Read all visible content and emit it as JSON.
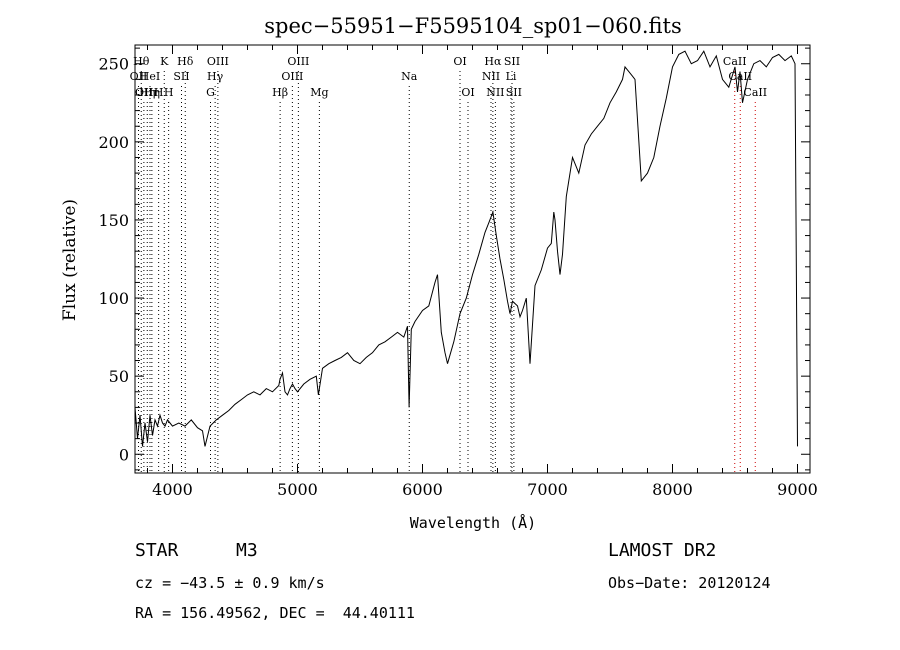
{
  "chart_data": {
    "type": "line",
    "title": "spec−55951−F5595104_sp01−060.fits",
    "xlabel": "Wavelength (Å)",
    "ylabel": "Flux (relative)",
    "xlim": [
      3700,
      9100
    ],
    "ylim": [
      -12,
      262
    ],
    "x_ticks": [
      4000,
      5000,
      6000,
      7000,
      8000,
      9000
    ],
    "x_tick_labels": [
      "4000",
      "5000",
      "6000",
      "7000",
      "8000",
      "9000"
    ],
    "y_ticks": [
      0,
      50,
      100,
      150,
      200,
      250
    ],
    "y_tick_labels": [
      "0",
      "50",
      "100",
      "150",
      "200",
      "250"
    ],
    "grid": false,
    "series": [
      {
        "x": [
          3700,
          3720,
          3740,
          3760,
          3780,
          3800,
          3820,
          3840,
          3860,
          3880,
          3900,
          3920,
          3940,
          3960,
          3980,
          4000,
          4050,
          4100,
          4150,
          4200,
          4240,
          4260,
          4300,
          4350,
          4400,
          4450,
          4500,
          4550,
          4600,
          4650,
          4700,
          4750,
          4800,
          4850,
          4860,
          4880,
          4900,
          4920,
          4940,
          4960,
          4980,
          5000,
          5050,
          5100,
          5150,
          5167,
          5200,
          5250,
          5300,
          5350,
          5400,
          5450,
          5500,
          5550,
          5600,
          5650,
          5700,
          5750,
          5800,
          5850,
          5880,
          5893,
          5910,
          5940,
          6000,
          6050,
          6100,
          6120,
          6150,
          6180,
          6200,
          6250,
          6300,
          6350,
          6400,
          6450,
          6500,
          6530,
          6563,
          6590,
          6620,
          6650,
          6680,
          6700,
          6720,
          6760,
          6780,
          6800,
          6830,
          6860,
          6900,
          6950,
          7000,
          7030,
          7050,
          7060,
          7080,
          7100,
          7120,
          7150,
          7200,
          7250,
          7300,
          7350,
          7400,
          7450,
          7500,
          7550,
          7600,
          7620,
          7650,
          7680,
          7700,
          7750,
          7800,
          7850,
          7900,
          7950,
          8000,
          8050,
          8100,
          8150,
          8200,
          8250,
          8300,
          8350,
          8400,
          8450,
          8500,
          8520,
          8540,
          8560,
          8600,
          8650,
          8700,
          8750,
          8800,
          8850,
          8900,
          8950,
          8980,
          9000
        ],
        "y": [
          30,
          10,
          25,
          5,
          20,
          8,
          25,
          12,
          22,
          18,
          25,
          20,
          18,
          22,
          20,
          18,
          20,
          18,
          22,
          17,
          15,
          5,
          18,
          22,
          25,
          28,
          32,
          35,
          38,
          40,
          38,
          42,
          40,
          44,
          48,
          52,
          40,
          38,
          42,
          45,
          42,
          40,
          45,
          48,
          50,
          38,
          55,
          58,
          60,
          62,
          65,
          60,
          58,
          62,
          65,
          70,
          72,
          75,
          78,
          75,
          82,
          30,
          80,
          85,
          92,
          95,
          110,
          115,
          78,
          65,
          58,
          72,
          90,
          100,
          115,
          128,
          142,
          148,
          155,
          140,
          125,
          112,
          98,
          90,
          98,
          95,
          88,
          92,
          100,
          58,
          108,
          118,
          132,
          135,
          155,
          150,
          130,
          115,
          128,
          165,
          190,
          180,
          198,
          205,
          210,
          215,
          225,
          232,
          240,
          248,
          245,
          242,
          240,
          175,
          180,
          190,
          210,
          228,
          248,
          256,
          258,
          250,
          252,
          258,
          248,
          255,
          240,
          235,
          248,
          232,
          245,
          225,
          240,
          250,
          252,
          248,
          254,
          256,
          252,
          255,
          250,
          5
        ],
        "line_color": "#000000"
      }
    ],
    "line_markers": [
      {
        "x": 3728,
        "label": "OII",
        "row": 1,
        "color": "#000000"
      },
      {
        "x": 3750,
        "label": "Hθ",
        "row": 0,
        "color": "#000000"
      },
      {
        "x": 3771,
        "label": "OII",
        "row": 2,
        "color": "#000000"
      },
      {
        "x": 3798,
        "label": "Hη",
        "row": 2,
        "color": "#000000"
      },
      {
        "x": 3820,
        "label": "HeI",
        "row": 1,
        "color": "#000000"
      },
      {
        "x": 3835,
        "label": "Hη",
        "row": 2,
        "color": "#000000"
      },
      {
        "x": 3889,
        "label": "H",
        "row": 2,
        "color": "#000000"
      },
      {
        "x": 3934,
        "label": "K",
        "row": 0,
        "color": "#000000"
      },
      {
        "x": 3969,
        "label": "H",
        "row": 2,
        "color": "#000000"
      },
      {
        "x": 4072,
        "label": "SII",
        "row": 1,
        "color": "#000000"
      },
      {
        "x": 4102,
        "label": "Hδ",
        "row": 0,
        "color": "#000000"
      },
      {
        "x": 4304,
        "label": "G",
        "row": 2,
        "color": "#000000"
      },
      {
        "x": 4341,
        "label": "Hγ",
        "row": 1,
        "color": "#000000"
      },
      {
        "x": 4363,
        "label": "OIII",
        "row": 0,
        "color": "#000000"
      },
      {
        "x": 4861,
        "label": "Hβ",
        "row": 2,
        "color": "#000000"
      },
      {
        "x": 4959,
        "label": "OIII",
        "row": 1,
        "color": "#000000"
      },
      {
        "x": 5007,
        "label": "OIII",
        "row": 0,
        "color": "#000000"
      },
      {
        "x": 5175,
        "label": "Mg",
        "row": 2,
        "color": "#000000"
      },
      {
        "x": 5894,
        "label": "Na",
        "row": 1,
        "color": "#000000"
      },
      {
        "x": 6300,
        "label": "OI",
        "row": 0,
        "color": "#000000"
      },
      {
        "x": 6364,
        "label": "OI",
        "row": 2,
        "color": "#000000"
      },
      {
        "x": 6548,
        "label": "NII",
        "row": 1,
        "color": "#000000"
      },
      {
        "x": 6563,
        "label": "Hα",
        "row": 0,
        "color": "#000000"
      },
      {
        "x": 6583,
        "label": "NII",
        "row": 2,
        "color": "#000000"
      },
      {
        "x": 6708,
        "label": "Li",
        "row": 1,
        "color": "#000000"
      },
      {
        "x": 6716,
        "label": "SII",
        "row": 0,
        "color": "#000000"
      },
      {
        "x": 6731,
        "label": "SII",
        "row": 2,
        "color": "#000000"
      },
      {
        "x": 8498,
        "label": "CaII",
        "row": 0,
        "color": "#cc0000"
      },
      {
        "x": 8542,
        "label": "CaII",
        "row": 1,
        "color": "#cc0000"
      },
      {
        "x": 8662,
        "label": "CaII",
        "row": 2,
        "color": "#cc0000"
      }
    ]
  },
  "info": {
    "object_class": "STAR",
    "subclass": "M3",
    "survey": "LAMOST DR2",
    "cz": "cz = −43.5 ± 0.9 km/s",
    "obs_date": "Obs−Date: 20120124",
    "coords": "RA = 156.49562, DEC =  44.40111"
  }
}
